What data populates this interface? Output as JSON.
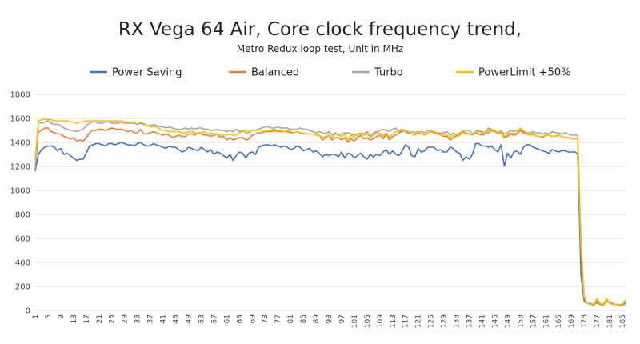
{
  "chart_data": {
    "type": "line",
    "title": "RX Vega 64 Air, Core clock frequency trend,",
    "subtitle": "Metro Redux loop test, Unit in MHz",
    "xlabel": "",
    "ylabel": "",
    "ylim": [
      0,
      1800
    ],
    "yticks": [
      0,
      200,
      400,
      600,
      800,
      1000,
      1200,
      1400,
      1600,
      1800
    ],
    "xlim": [
      1,
      186
    ],
    "xticks": [
      1,
      5,
      9,
      13,
      17,
      21,
      25,
      29,
      33,
      37,
      41,
      45,
      49,
      53,
      57,
      61,
      65,
      69,
      73,
      77,
      81,
      85,
      89,
      93,
      97,
      101,
      105,
      109,
      113,
      117,
      121,
      125,
      129,
      133,
      137,
      141,
      145,
      149,
      153,
      157,
      161,
      165,
      169,
      173,
      177,
      181,
      185
    ],
    "grid": true,
    "legend_position": "top",
    "series": [
      {
        "name": "Power Saving",
        "color": "#4472C4",
        "values": [
          1160,
          1300,
          1340,
          1360,
          1370,
          1370,
          1360,
          1330,
          1350,
          1300,
          1310,
          1290,
          1270,
          1250,
          1260,
          1260,
          1310,
          1370,
          1380,
          1390,
          1390,
          1380,
          1370,
          1390,
          1390,
          1380,
          1390,
          1400,
          1390,
          1380,
          1380,
          1370,
          1390,
          1400,
          1380,
          1370,
          1370,
          1390,
          1380,
          1370,
          1360,
          1350,
          1370,
          1360,
          1360,
          1340,
          1320,
          1330,
          1360,
          1350,
          1340,
          1330,
          1360,
          1340,
          1320,
          1340,
          1300,
          1320,
          1310,
          1290,
          1270,
          1300,
          1250,
          1290,
          1320,
          1310,
          1270,
          1310,
          1320,
          1300,
          1360,
          1370,
          1380,
          1380,
          1370,
          1380,
          1370,
          1360,
          1370,
          1360,
          1340,
          1350,
          1370,
          1360,
          1330,
          1340,
          1350,
          1320,
          1330,
          1310,
          1280,
          1300,
          1290,
          1300,
          1300,
          1280,
          1320,
          1270,
          1310,
          1300,
          1270,
          1290,
          1310,
          1280,
          1260,
          1300,
          1280,
          1300,
          1290,
          1320,
          1340,
          1300,
          1330,
          1300,
          1290,
          1330,
          1380,
          1360,
          1290,
          1280,
          1350,
          1320,
          1330,
          1360,
          1360,
          1360,
          1330,
          1340,
          1320,
          1320,
          1360,
          1350,
          1320,
          1310,
          1250,
          1280,
          1260,
          1300,
          1390,
          1390,
          1370,
          1370,
          1360,
          1370,
          1340,
          1320,
          1380,
          1200,
          1310,
          1270,
          1320,
          1330,
          1300,
          1360,
          1380,
          1380,
          1360,
          1350,
          1340,
          1330,
          1320,
          1310,
          1340,
          1330,
          1320,
          1330,
          1330,
          1320,
          1320,
          1320,
          1310,
          300,
          80,
          60,
          50,
          40,
          70,
          50,
          40,
          80,
          60,
          50,
          50,
          40,
          40,
          60
        ]
      },
      {
        "name": "Balanced",
        "color": "#ED7D31",
        "values": [
          1170,
          1490,
          1500,
          1520,
          1520,
          1490,
          1480,
          1470,
          1470,
          1450,
          1440,
          1430,
          1440,
          1410,
          1420,
          1410,
          1440,
          1480,
          1500,
          1500,
          1510,
          1510,
          1500,
          1510,
          1520,
          1510,
          1510,
          1510,
          1500,
          1490,
          1500,
          1480,
          1480,
          1510,
          1470,
          1470,
          1480,
          1490,
          1480,
          1470,
          1460,
          1470,
          1460,
          1440,
          1450,
          1460,
          1450,
          1450,
          1470,
          1470,
          1460,
          1480,
          1470,
          1460,
          1460,
          1450,
          1460,
          1470,
          1440,
          1450,
          1420,
          1440,
          1420,
          1430,
          1440,
          1440,
          1420,
          1430,
          1460,
          1470,
          1480,
          1480,
          1490,
          1490,
          1490,
          1500,
          1490,
          1490,
          1490,
          1490,
          1480,
          1480,
          1490,
          1480,
          1470,
          1470,
          1470,
          1470,
          1460,
          1460,
          1420,
          1440,
          1460,
          1420,
          1440,
          1440,
          1420,
          1440,
          1400,
          1430,
          1410,
          1440,
          1460,
          1430,
          1440,
          1420,
          1430,
          1450,
          1460,
          1430,
          1470,
          1420,
          1450,
          1460,
          1480,
          1490,
          1500,
          1480,
          1470,
          1460,
          1480,
          1470,
          1460,
          1480,
          1490,
          1480,
          1470,
          1460,
          1450,
          1450,
          1420,
          1440,
          1450,
          1460,
          1490,
          1470,
          1470,
          1460,
          1480,
          1470,
          1460,
          1470,
          1480,
          1500,
          1490,
          1470,
          1480,
          1440,
          1450,
          1470,
          1460,
          1470,
          1500,
          1480,
          1470,
          1460,
          1470,
          1450,
          1450,
          1440,
          1460,
          1460,
          1450,
          1450,
          1460,
          1450,
          1440,
          1440,
          1430,
          1430,
          1430,
          500,
          100,
          60,
          50,
          40,
          80,
          50,
          40,
          80,
          60,
          50,
          50,
          40,
          40,
          70
        ]
      },
      {
        "name": "Turbo",
        "color": "#A5A5A5",
        "values": [
          1190,
          1570,
          1560,
          1570,
          1580,
          1560,
          1550,
          1550,
          1540,
          1520,
          1510,
          1500,
          1500,
          1490,
          1500,
          1510,
          1540,
          1560,
          1570,
          1570,
          1560,
          1560,
          1570,
          1570,
          1560,
          1560,
          1560,
          1570,
          1560,
          1560,
          1560,
          1560,
          1550,
          1560,
          1550,
          1540,
          1540,
          1550,
          1540,
          1530,
          1530,
          1520,
          1530,
          1520,
          1510,
          1510,
          1510,
          1520,
          1510,
          1520,
          1510,
          1520,
          1520,
          1510,
          1510,
          1500,
          1500,
          1510,
          1500,
          1500,
          1490,
          1500,
          1490,
          1510,
          1490,
          1500,
          1480,
          1480,
          1500,
          1500,
          1510,
          1520,
          1530,
          1530,
          1520,
          1520,
          1530,
          1520,
          1520,
          1520,
          1510,
          1510,
          1510,
          1520,
          1510,
          1510,
          1500,
          1490,
          1480,
          1490,
          1480,
          1470,
          1490,
          1460,
          1480,
          1460,
          1470,
          1480,
          1480,
          1470,
          1460,
          1470,
          1480,
          1470,
          1490,
          1450,
          1480,
          1490,
          1500,
          1510,
          1500,
          1490,
          1510,
          1520,
          1490,
          1500,
          1490,
          1470,
          1490,
          1480,
          1490,
          1490,
          1480,
          1500,
          1490,
          1490,
          1480,
          1480,
          1480,
          1490,
          1460,
          1480,
          1460,
          1480,
          1490,
          1500,
          1500,
          1470,
          1490,
          1500,
          1490,
          1480,
          1520,
          1510,
          1500,
          1480,
          1500,
          1470,
          1480,
          1500,
          1490,
          1500,
          1510,
          1490,
          1480,
          1480,
          1490,
          1480,
          1480,
          1470,
          1480,
          1470,
          1490,
          1480,
          1480,
          1470,
          1480,
          1470,
          1460,
          1460,
          1460,
          600,
          110,
          60,
          60,
          50,
          90,
          60,
          50,
          90,
          70,
          60,
          50,
          50,
          50,
          80
        ]
      },
      {
        "name": "PowerLimit +50%",
        "color": "#FFC000",
        "values": [
          1260,
          1580,
          1590,
          1590,
          1590,
          1590,
          1580,
          1580,
          1580,
          1580,
          1580,
          1570,
          1570,
          1560,
          1570,
          1570,
          1580,
          1580,
          1580,
          1580,
          1580,
          1580,
          1580,
          1580,
          1580,
          1580,
          1580,
          1580,
          1570,
          1570,
          1570,
          1570,
          1570,
          1570,
          1560,
          1540,
          1530,
          1530,
          1530,
          1510,
          1500,
          1500,
          1490,
          1490,
          1490,
          1490,
          1480,
          1480,
          1490,
          1490,
          1480,
          1480,
          1480,
          1490,
          1470,
          1480,
          1470,
          1470,
          1460,
          1460,
          1460,
          1470,
          1460,
          1460,
          1480,
          1490,
          1500,
          1490,
          1500,
          1500,
          1500,
          1500,
          1500,
          1500,
          1500,
          1510,
          1500,
          1500,
          1490,
          1500,
          1490,
          1480,
          1490,
          1480,
          1480,
          1470,
          1470,
          1470,
          1460,
          1460,
          1440,
          1450,
          1460,
          1440,
          1470,
          1460,
          1450,
          1470,
          1420,
          1460,
          1440,
          1460,
          1480,
          1460,
          1470,
          1440,
          1460,
          1480,
          1480,
          1450,
          1480,
          1440,
          1470,
          1490,
          1500,
          1510,
          1500,
          1490,
          1470,
          1460,
          1490,
          1470,
          1460,
          1470,
          1500,
          1490,
          1480,
          1460,
          1470,
          1460,
          1440,
          1460,
          1450,
          1470,
          1500,
          1480,
          1470,
          1460,
          1480,
          1490,
          1480,
          1470,
          1500,
          1510,
          1500,
          1470,
          1490,
          1450,
          1460,
          1480,
          1470,
          1480,
          1520,
          1500,
          1480,
          1460,
          1480,
          1450,
          1450,
          1450,
          1460,
          1460,
          1450,
          1450,
          1460,
          1450,
          1440,
          1440,
          1430,
          1430,
          1440,
          550,
          120,
          60,
          50,
          40,
          100,
          60,
          40,
          100,
          60,
          50,
          50,
          40,
          40,
          90
        ]
      }
    ]
  }
}
